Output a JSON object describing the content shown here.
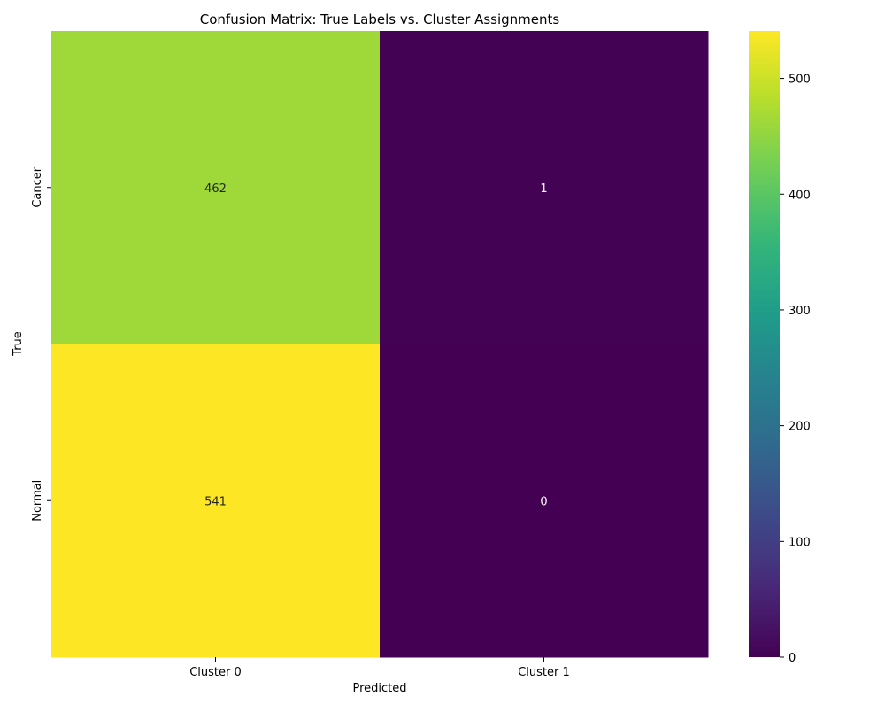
{
  "chart_data": {
    "type": "heatmap",
    "title": "Confusion Matrix: True Labels vs. Cluster Assignments",
    "xlabel": "Predicted",
    "ylabel": "True",
    "x_categories": [
      "Cluster 0",
      "Cluster 1"
    ],
    "y_categories": [
      "Cancer",
      "Normal"
    ],
    "values": [
      [
        462,
        1
      ],
      [
        541,
        0
      ]
    ],
    "colormap": "viridis",
    "colorbar": {
      "range": [
        0,
        541
      ],
      "ticks": [
        0,
        100,
        200,
        300,
        400,
        500
      ]
    },
    "annotation_colors": {
      "dark": "#262626",
      "light": "#ffffff"
    }
  }
}
